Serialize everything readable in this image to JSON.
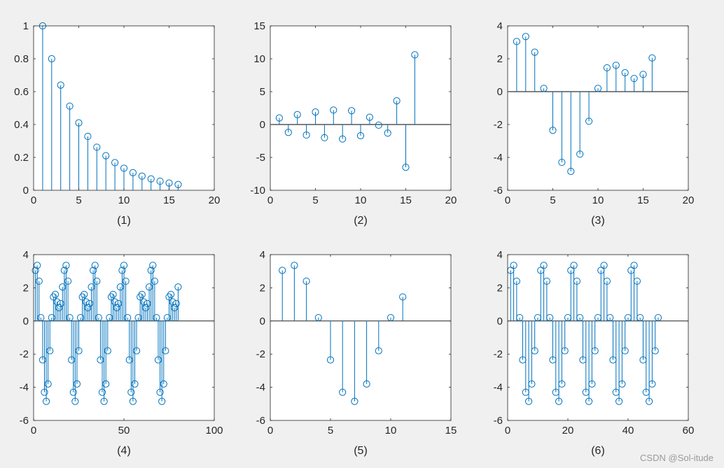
{
  "colors": {
    "stem": "#0072BD",
    "axes": "#262626",
    "background": "#f0f0f0",
    "plot_bg": "#ffffff"
  },
  "watermark": "CSDN @Sol-itude",
  "chart_data": [
    {
      "type": "stem",
      "xlabel": "(1)",
      "xlim": [
        0,
        20
      ],
      "ylim": [
        0,
        1
      ],
      "xticks": [
        0,
        5,
        10,
        15,
        20
      ],
      "xtick_labels": [
        "0",
        "5",
        "10",
        "15",
        "20"
      ],
      "yticks": [
        0,
        0.2,
        0.4,
        0.6,
        0.8,
        1
      ],
      "ytick_labels": [
        "0",
        "0.2",
        "0.4",
        "0.6",
        "0.8",
        "1"
      ],
      "x": [
        1,
        2,
        3,
        4,
        5,
        6,
        7,
        8,
        9,
        10,
        11,
        12,
        13,
        14,
        15,
        16
      ],
      "y": [
        1,
        0.8,
        0.64,
        0.512,
        0.41,
        0.328,
        0.262,
        0.21,
        0.168,
        0.134,
        0.107,
        0.086,
        0.069,
        0.055,
        0.044,
        0.035
      ]
    },
    {
      "type": "stem",
      "xlabel": "(2)",
      "xlim": [
        0,
        20
      ],
      "ylim": [
        -10,
        15
      ],
      "xticks": [
        0,
        5,
        10,
        15,
        20
      ],
      "xtick_labels": [
        "0",
        "5",
        "10",
        "15",
        "20"
      ],
      "yticks": [
        -10,
        -5,
        0,
        5,
        10,
        15
      ],
      "ytick_labels": [
        "-10",
        "-5",
        "0",
        "5",
        "10",
        "15"
      ],
      "x": [
        1,
        2,
        3,
        4,
        5,
        6,
        7,
        8,
        9,
        10,
        11,
        12,
        13,
        14,
        15,
        16
      ],
      "y": [
        1.0,
        -1.2,
        1.5,
        -1.6,
        1.9,
        -2.0,
        2.2,
        -2.2,
        2.1,
        -1.7,
        1.1,
        -0.1,
        -1.3,
        3.6,
        -6.5,
        10.6
      ]
    },
    {
      "type": "stem",
      "xlabel": "(3)",
      "xlim": [
        0,
        20
      ],
      "ylim": [
        -6,
        4
      ],
      "xticks": [
        0,
        5,
        10,
        15,
        20
      ],
      "xtick_labels": [
        "0",
        "5",
        "10",
        "15",
        "20"
      ],
      "yticks": [
        -6,
        -4,
        -2,
        0,
        2,
        4
      ],
      "ytick_labels": [
        "-6",
        "-4",
        "-2",
        "0",
        "2",
        "4"
      ],
      "x": [
        1,
        2,
        3,
        4,
        5,
        6,
        7,
        8,
        9,
        10,
        11,
        12,
        13,
        14,
        15,
        16
      ],
      "y": [
        3.05,
        3.35,
        2.4,
        0.2,
        -2.35,
        -4.3,
        -4.85,
        -3.8,
        -1.8,
        0.2,
        1.45,
        1.6,
        1.15,
        0.8,
        1.05,
        2.05
      ]
    },
    {
      "type": "stem",
      "xlabel": "(4)",
      "xlim": [
        0,
        100
      ],
      "ylim": [
        -6,
        4
      ],
      "xticks": [
        0,
        50,
        100
      ],
      "xtick_labels": [
        "0",
        "50",
        "100"
      ],
      "yticks": [
        -6,
        -4,
        -2,
        0,
        2,
        4
      ],
      "ytick_labels": [
        "-6",
        "-4",
        "-2",
        "0",
        "2",
        "4"
      ],
      "x": [
        1,
        2,
        3,
        4,
        5,
        6,
        7,
        8,
        9,
        10,
        11,
        12,
        13,
        14,
        15,
        16,
        17,
        18,
        19,
        20,
        21,
        22,
        23,
        24,
        25,
        26,
        27,
        28,
        29,
        30,
        31,
        32,
        33,
        34,
        35,
        36,
        37,
        38,
        39,
        40,
        41,
        42,
        43,
        44,
        45,
        46,
        47,
        48,
        49,
        50,
        51,
        52,
        53,
        54,
        55,
        56,
        57,
        58,
        59,
        60,
        61,
        62,
        63,
        64,
        65,
        66,
        67,
        68,
        69,
        70,
        71,
        72,
        73,
        74,
        75,
        76,
        77,
        78,
        79,
        80
      ],
      "y": [
        3.05,
        3.35,
        2.4,
        0.2,
        -2.35,
        -4.3,
        -4.85,
        -3.8,
        -1.8,
        0.2,
        1.45,
        1.6,
        1.15,
        0.8,
        1.05,
        2.05,
        3.05,
        3.35,
        2.4,
        0.2,
        -2.35,
        -4.3,
        -4.85,
        -3.8,
        -1.8,
        0.2,
        1.45,
        1.6,
        1.15,
        0.8,
        1.05,
        2.05,
        3.05,
        3.35,
        2.4,
        0.2,
        -2.35,
        -4.3,
        -4.85,
        -3.8,
        -1.8,
        0.2,
        1.45,
        1.6,
        1.15,
        0.8,
        1.05,
        2.05,
        3.05,
        3.35,
        2.4,
        0.2,
        -2.35,
        -4.3,
        -4.85,
        -3.8,
        -1.8,
        0.2,
        1.45,
        1.6,
        1.15,
        0.8,
        1.05,
        2.05,
        3.05,
        3.35,
        2.4,
        0.2,
        -2.35,
        -4.3,
        -4.85,
        -3.8,
        -1.8,
        0.2,
        1.45,
        1.6,
        1.15,
        0.8,
        1.05,
        2.05
      ]
    },
    {
      "type": "stem",
      "xlabel": "(5)",
      "xlim": [
        0,
        15
      ],
      "ylim": [
        -6,
        4
      ],
      "xticks": [
        0,
        5,
        10,
        15
      ],
      "xtick_labels": [
        "0",
        "5",
        "10",
        "15"
      ],
      "yticks": [
        -6,
        -4,
        -2,
        0,
        2,
        4
      ],
      "ytick_labels": [
        "-6",
        "-4",
        "-2",
        "0",
        "2",
        "4"
      ],
      "x": [
        1,
        2,
        3,
        4,
        5,
        6,
        7,
        8,
        9,
        10,
        11
      ],
      "y": [
        3.05,
        3.35,
        2.4,
        0.2,
        -2.35,
        -4.3,
        -4.85,
        -3.8,
        -1.8,
        0.2,
        1.45
      ]
    },
    {
      "type": "stem",
      "xlabel": "(6)",
      "xlim": [
        0,
        60
      ],
      "ylim": [
        -6,
        4
      ],
      "xticks": [
        0,
        20,
        40,
        60
      ],
      "xtick_labels": [
        "0",
        "20",
        "40",
        "60"
      ],
      "yticks": [
        -6,
        -4,
        -2,
        0,
        2,
        4
      ],
      "ytick_labels": [
        "-6",
        "-4",
        "-2",
        "0",
        "2",
        "4"
      ],
      "x": [
        1,
        2,
        3,
        4,
        5,
        6,
        7,
        8,
        9,
        10,
        11,
        12,
        13,
        14,
        15,
        16,
        17,
        18,
        19,
        20,
        21,
        22,
        23,
        24,
        25,
        26,
        27,
        28,
        29,
        30,
        31,
        32,
        33,
        34,
        35,
        36,
        37,
        38,
        39,
        40,
        41,
        42,
        43,
        44,
        45,
        46,
        47,
        48,
        49,
        50
      ],
      "y": [
        3.05,
        3.35,
        2.4,
        0.2,
        -2.35,
        -4.3,
        -4.85,
        -3.8,
        -1.8,
        0.2,
        3.05,
        3.35,
        2.4,
        0.2,
        -2.35,
        -4.3,
        -4.85,
        -3.8,
        -1.8,
        0.2,
        3.05,
        3.35,
        2.4,
        0.2,
        -2.35,
        -4.3,
        -4.85,
        -3.8,
        -1.8,
        0.2,
        3.05,
        3.35,
        2.4,
        0.2,
        -2.35,
        -4.3,
        -4.85,
        -3.8,
        -1.8,
        0.2,
        3.05,
        3.35,
        2.4,
        0.2,
        -2.35,
        -4.3,
        -4.85,
        -3.8,
        -1.8,
        0.2
      ]
    }
  ]
}
